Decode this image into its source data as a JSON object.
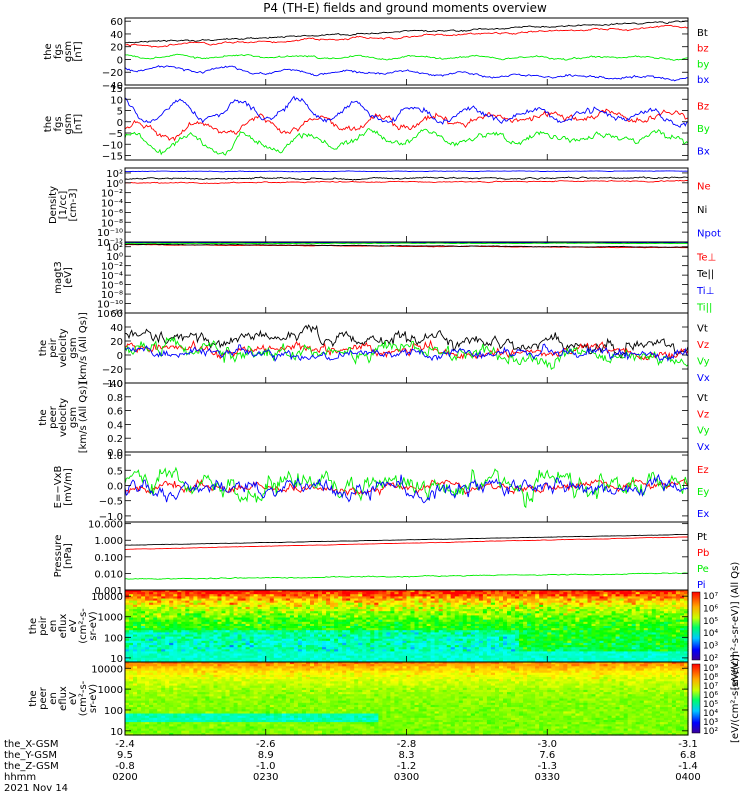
{
  "title": "P4 (TH-E) fields and ground moments overview",
  "time_axis": {
    "ticks": [
      "0200",
      "0230",
      "0300",
      "0330",
      "0400"
    ],
    "date": "2021 Nov 14",
    "ephemeris": [
      {
        "label": "the_X-GSM",
        "values": [
          "-2.4",
          "-2.6",
          "-2.8",
          "-3.0",
          "-3.1"
        ]
      },
      {
        "label": "the_Y-GSM",
        "values": [
          "9.5",
          "8.9",
          "8.3",
          "7.6",
          "6.8"
        ]
      },
      {
        "label": "the_Z-GSM",
        "values": [
          "-0.8",
          "-1.0",
          "-1.2",
          "-1.3",
          "-1.4"
        ]
      },
      {
        "label": "hhmm",
        "values": [
          "0200",
          "0230",
          "0300",
          "0330",
          "0400"
        ]
      }
    ]
  },
  "colors": {
    "black": "#000000",
    "red": "#ff0000",
    "green": "#00ee00",
    "blue": "#0000ff"
  },
  "chart_data": [
    {
      "type": "line",
      "id": "fgs-gsm",
      "ylabel": [
        "the",
        "fgs",
        "gsm",
        "[nT]"
      ],
      "ylim": [
        -40,
        65
      ],
      "yticks": [
        {
          "v": 60,
          "t": "60"
        },
        {
          "v": 40,
          "t": "40"
        },
        {
          "v": 20,
          "t": "20"
        },
        {
          "v": 0,
          "t": "0"
        },
        {
          "v": -20,
          "t": "−20"
        },
        {
          "v": -40,
          "t": "−40"
        }
      ],
      "series": [
        {
          "name": "Bt",
          "color": "#000000",
          "start": 26,
          "end": 60,
          "noise": 1.2,
          "osc": 0
        },
        {
          "name": "bz",
          "color": "#ff0000",
          "start": 20,
          "end": 52,
          "noise": 1.5,
          "osc": 2
        },
        {
          "name": "by",
          "color": "#00ee00",
          "start": 5,
          "end": 2,
          "noise": 1.5,
          "osc": 3
        },
        {
          "name": "bx",
          "color": "#0000ff",
          "start": -13,
          "end": -30,
          "noise": 2,
          "osc": 4
        }
      ]
    },
    {
      "type": "line",
      "id": "fgs-dsl",
      "ylabel": [
        "the",
        "fgs",
        "gsm",
        "[nT]"
      ],
      "ylim": [
        -17,
        15
      ],
      "yticks": [
        {
          "v": 15,
          "t": "15"
        },
        {
          "v": 10,
          "t": "10"
        },
        {
          "v": 5,
          "t": "5"
        },
        {
          "v": 0,
          "t": "0"
        },
        {
          "v": -5,
          "t": "−5"
        },
        {
          "v": -10,
          "t": "−10"
        },
        {
          "v": -15,
          "t": "−15"
        }
      ],
      "series": [
        {
          "name": "Bz",
          "color": "#ff0000",
          "start": -4,
          "end": 4,
          "noise": 1.5,
          "osc": 3
        },
        {
          "name": "By",
          "color": "#00ee00",
          "start": -10,
          "end": -6,
          "noise": 1.5,
          "osc": 4
        },
        {
          "name": "Bx",
          "color": "#0000ff",
          "start": 6,
          "end": 2,
          "noise": 1.5,
          "osc": 5
        }
      ]
    },
    {
      "type": "line",
      "id": "density",
      "log": true,
      "ylabel": [
        "Density",
        "[1/cc]",
        "[cm-3]"
      ],
      "ylim": [
        -12,
        3
      ],
      "yticks": [
        {
          "v": 2,
          "t": "10²"
        },
        {
          "v": 0,
          "t": "10⁰"
        },
        {
          "v": -2,
          "t": "10⁻²"
        },
        {
          "v": -4,
          "t": "10⁻⁴"
        },
        {
          "v": -6,
          "t": "10⁻⁶"
        },
        {
          "v": -8,
          "t": "10⁻⁸"
        },
        {
          "v": -10,
          "t": "10⁻¹⁰"
        },
        {
          "v": -12,
          "t": "10⁻¹²"
        }
      ],
      "series": [
        {
          "name": "Ne",
          "color": "#ff0000",
          "start": 0.0,
          "end": 0.4,
          "noise": 0.1,
          "osc": 0
        },
        {
          "name": "Ni",
          "color": "#000000",
          "start": 0.8,
          "end": 1.0,
          "noise": 0.15,
          "osc": 0
        },
        {
          "name": "Npot",
          "color": "#0000ff",
          "start": 2.3,
          "end": 2.4,
          "noise": 0.05,
          "osc": 0
        }
      ]
    },
    {
      "type": "line",
      "id": "temperature",
      "log": true,
      "ylabel": [
        "magt3",
        "[eV]"
      ],
      "ylim": [
        -12,
        3
      ],
      "yticks": [
        {
          "v": 2,
          "t": "10²"
        },
        {
          "v": 0,
          "t": "10⁰"
        },
        {
          "v": -2,
          "t": "10⁻²"
        },
        {
          "v": -4,
          "t": "10⁻⁴"
        },
        {
          "v": -6,
          "t": "10⁻⁶"
        },
        {
          "v": -8,
          "t": "10⁻⁸"
        },
        {
          "v": -10,
          "t": "10⁻¹⁰"
        },
        {
          "v": -12,
          "t": "10⁻¹²"
        }
      ],
      "series": [
        {
          "name": "Te⊥",
          "color": "#ff0000",
          "start": 2.4,
          "end": 1.8,
          "noise": 0.05,
          "osc": 0
        },
        {
          "name": "Te||",
          "color": "#000000",
          "start": 2.5,
          "end": 1.9,
          "noise": 0.05,
          "osc": 0
        },
        {
          "name": "Ti⊥",
          "color": "#0000ff",
          "start": 2.9,
          "end": 2.9,
          "noise": 0.03,
          "osc": 0
        },
        {
          "name": "Ti||",
          "color": "#00ee00",
          "start": 2.7,
          "end": 2.7,
          "noise": 0.04,
          "osc": 0
        }
      ]
    },
    {
      "type": "line",
      "id": "peir-velocity",
      "ylabel": [
        "the",
        "peir",
        "velocity",
        "gsm",
        "[km/s (All Qs)]"
      ],
      "ylim": [
        -40,
        60
      ],
      "yticks": [
        {
          "v": 60,
          "t": "60"
        },
        {
          "v": 40,
          "t": "40"
        },
        {
          "v": 20,
          "t": "20"
        },
        {
          "v": 0,
          "t": "0"
        },
        {
          "v": -20,
          "t": "−20"
        },
        {
          "v": -40,
          "t": "−40"
        }
      ],
      "series": [
        {
          "name": "Vt",
          "color": "#000000",
          "start": 30,
          "end": 12,
          "noise": 9,
          "osc": 0
        },
        {
          "name": "Vz",
          "color": "#ff0000",
          "start": 10,
          "end": 3,
          "noise": 7,
          "osc": 0
        },
        {
          "name": "Vy",
          "color": "#00ee00",
          "start": 5,
          "end": 0,
          "noise": 10,
          "osc": 0
        },
        {
          "name": "Vx",
          "color": "#0000ff",
          "start": 5,
          "end": 0,
          "noise": 7,
          "osc": 0
        }
      ]
    },
    {
      "type": "line",
      "id": "peer-velocity",
      "ylabel": [
        "the",
        "peer",
        "velocity",
        "gsm",
        "[km/s (All Qs)]"
      ],
      "ylim": [
        0,
        1
      ],
      "yticks": [
        {
          "v": 1.0,
          "t": "1.0"
        },
        {
          "v": 0.8,
          "t": "0.8"
        },
        {
          "v": 0.6,
          "t": "0.6"
        },
        {
          "v": 0.4,
          "t": "0.4"
        },
        {
          "v": 0.2,
          "t": "0.2"
        },
        {
          "v": 0.0,
          "t": "0.0"
        }
      ],
      "series": [
        {
          "name": "Vt",
          "color": "#000000",
          "start": null,
          "end": null,
          "noise": 0,
          "osc": 0
        },
        {
          "name": "Vz",
          "color": "#ff0000",
          "start": null,
          "end": null,
          "noise": 0,
          "osc": 0
        },
        {
          "name": "Vy",
          "color": "#00ee00",
          "start": null,
          "end": null,
          "noise": 0,
          "osc": 0
        },
        {
          "name": "Vx",
          "color": "#0000ff",
          "start": null,
          "end": null,
          "noise": 0,
          "osc": 0
        }
      ]
    },
    {
      "type": "line",
      "id": "efield",
      "ylabel": [
        "E=−VxB",
        "[mV/m]"
      ],
      "ylim": [
        -1.2,
        1.1
      ],
      "yticks": [
        {
          "v": 1.0,
          "t": "1.0"
        },
        {
          "v": 0.5,
          "t": "0.5"
        },
        {
          "v": 0.0,
          "t": "0.0"
        },
        {
          "v": -0.5,
          "t": "−0.5"
        },
        {
          "v": -1.0,
          "t": "−1.0"
        }
      ],
      "series": [
        {
          "name": "Ez",
          "color": "#ff0000",
          "start": -0.1,
          "end": 0.0,
          "noise": 0.15,
          "osc": 0
        },
        {
          "name": "Ey",
          "color": "#00ee00",
          "start": 0.1,
          "end": 0.0,
          "noise": 0.35,
          "osc": 0
        },
        {
          "name": "Ex",
          "color": "#0000ff",
          "start": -0.2,
          "end": -0.1,
          "noise": 0.25,
          "osc": 0
        }
      ]
    },
    {
      "type": "line",
      "id": "pressure",
      "log": true,
      "ylabel": [
        "Pressure",
        "[nPa]"
      ],
      "ylim": [
        -3,
        1.1
      ],
      "yticks": [
        {
          "v": 1,
          "t": "10.000"
        },
        {
          "v": 0,
          "t": "1.000"
        },
        {
          "v": -1,
          "t": "0.100"
        },
        {
          "v": -2,
          "t": "0.010"
        },
        {
          "v": -3,
          "t": "0.001"
        }
      ],
      "series": [
        {
          "name": "Pt",
          "color": "#000000",
          "start": -0.3,
          "end": 0.35,
          "noise": 0.01,
          "osc": 0
        },
        {
          "name": "Pb",
          "color": "#ff0000",
          "start": -0.55,
          "end": 0.2,
          "noise": 0.01,
          "osc": 0
        },
        {
          "name": "Pe",
          "color": "#00ee00",
          "start": -2.35,
          "end": -2.0,
          "noise": 0.03,
          "osc": 0
        },
        {
          "name": "Pi",
          "color": "#0000ff",
          "start": null,
          "end": null,
          "noise": 0,
          "osc": 0
        }
      ]
    },
    {
      "type": "heatmap",
      "id": "peir-eflux",
      "log": true,
      "ylabel": [
        "the",
        "peir",
        "en",
        "eflux",
        "eV",
        "(cm²-s-",
        "sr-eV)"
      ],
      "ylim": [
        0.8,
        4.3
      ],
      "yticks": [
        {
          "v": 4,
          "t": "10000"
        },
        {
          "v": 3,
          "t": "1000"
        },
        {
          "v": 2,
          "t": "100"
        },
        {
          "v": 1,
          "t": "10"
        }
      ],
      "colorbar": {
        "label": "[eV/(cm²-s-sr-eV)] (All Qs)",
        "ticks": [
          "10⁷",
          "10⁶",
          "10⁵",
          "10⁴",
          "10³",
          "10²"
        ]
      }
    },
    {
      "type": "heatmap",
      "id": "peer-eflux",
      "log": true,
      "ylabel": [
        "the",
        "peer",
        "en",
        "eflux",
        "eV",
        "(cm²-s-",
        "sr-eV)"
      ],
      "ylim": [
        0.8,
        4.3
      ],
      "yticks": [
        {
          "v": 4,
          "t": "10000"
        },
        {
          "v": 3,
          "t": "1000"
        },
        {
          "v": 2,
          "t": "100"
        },
        {
          "v": 1,
          "t": "10"
        }
      ],
      "colorbar": {
        "label": "[eV/(cm²-s-sr-eV)]",
        "ticks": [
          "10⁹",
          "10⁸",
          "10⁷",
          "10⁶",
          "10⁵",
          "10⁴",
          "10³",
          "10²"
        ]
      }
    }
  ]
}
